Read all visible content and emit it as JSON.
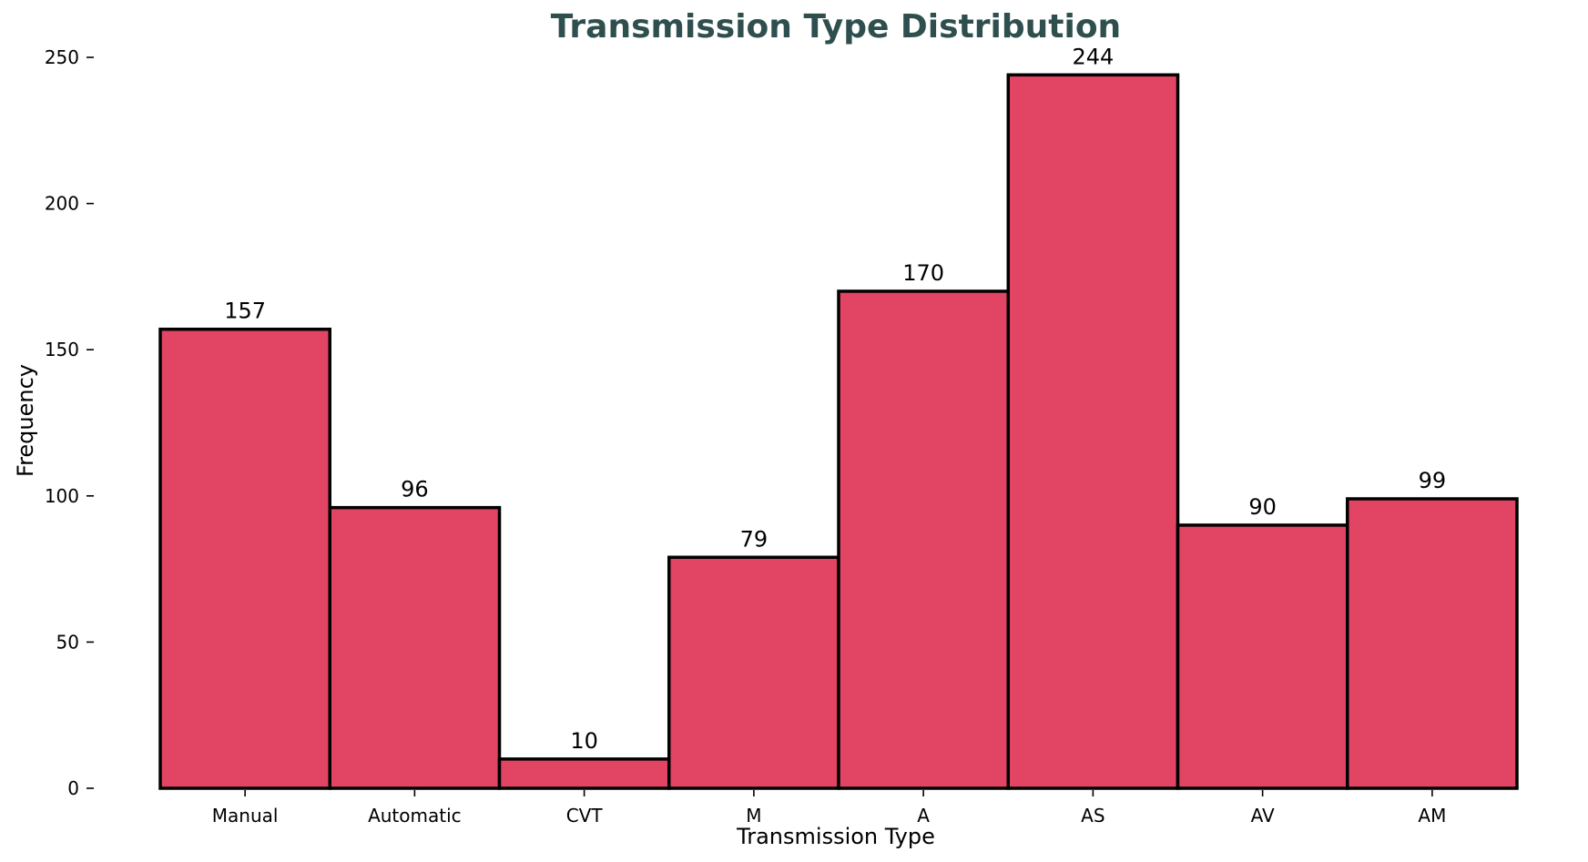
{
  "chart_data": {
    "type": "bar",
    "title": "Transmission Type Distribution",
    "xlabel": "Transmission Type",
    "ylabel": "Frequency",
    "categories": [
      "Manual",
      "Automatic",
      "CVT",
      "M",
      "A",
      "AS",
      "AV",
      "AM"
    ],
    "values": [
      157,
      96,
      10,
      79,
      170,
      244,
      90,
      99
    ],
    "ylim": [
      0,
      250
    ],
    "yticks": [
      0,
      50,
      100,
      150,
      200,
      250
    ],
    "grid": false,
    "legend": "none",
    "colors": {
      "bar_fill": "#e24463",
      "bar_edge": "#000000",
      "title": "#2f4f4f"
    }
  }
}
